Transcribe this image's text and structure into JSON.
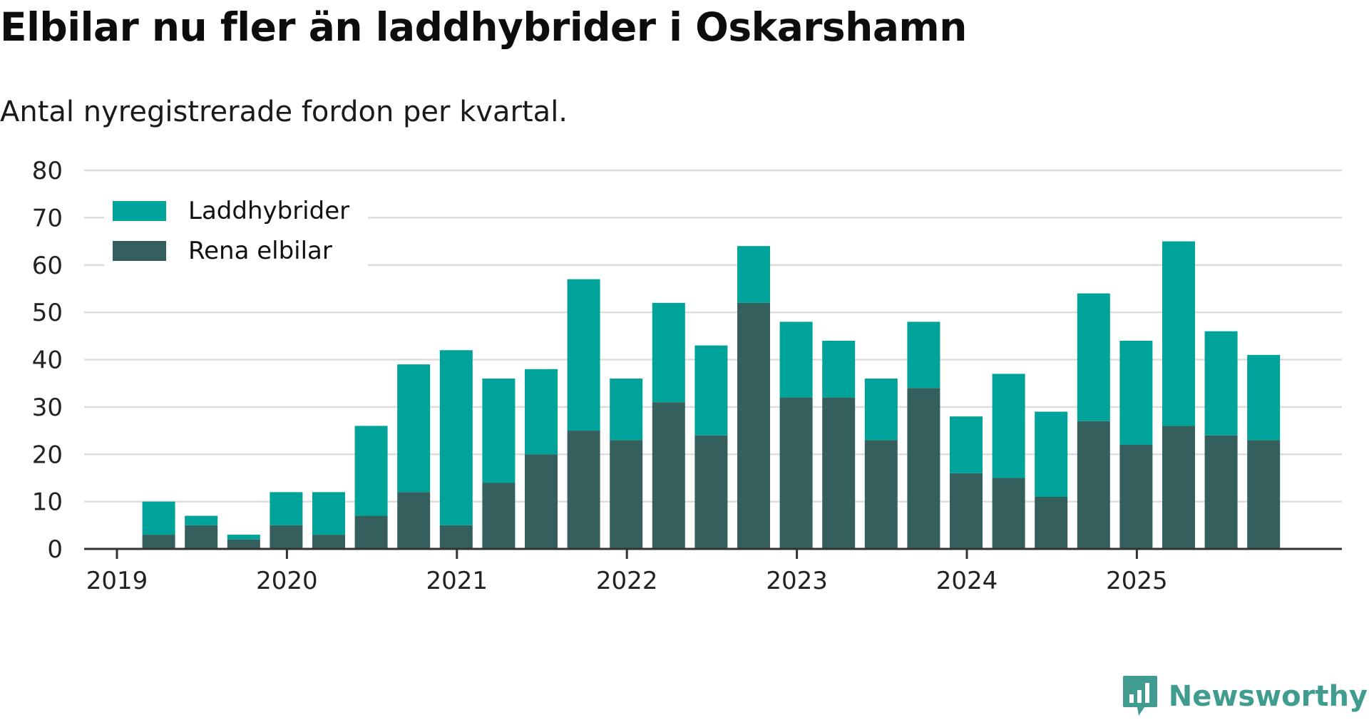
{
  "header": {
    "title": "Elbilar nu fler än laddhybrider i Oskarshamn",
    "subtitle": "Antal nyregistrerade fordon per kvartal."
  },
  "brand": {
    "name": "Newsworthy",
    "color": "#3f9c8f"
  },
  "colors": {
    "laddhybrider": "#00a39a",
    "elbilar": "#345f5c",
    "grid": "#dddddd",
    "axis": "#333333"
  },
  "chart_data": {
    "type": "bar",
    "stacked": true,
    "title": "Elbilar nu fler än laddhybrider i Oskarshamn",
    "subtitle": "Antal nyregistrerade fordon per kvartal.",
    "xlabel": "",
    "ylabel": "",
    "ylim": [
      0,
      80
    ],
    "yticks": [
      0,
      10,
      20,
      30,
      40,
      50,
      60,
      70,
      80
    ],
    "grid": true,
    "legend_position": "top-left",
    "x_tick_labels": [
      "2019",
      "2020",
      "2021",
      "2022",
      "2023",
      "2024",
      "2025"
    ],
    "categories": [
      "2019 Q1",
      "2019 Q2",
      "2019 Q3",
      "2019 Q4",
      "2020 Q1",
      "2020 Q2",
      "2020 Q3",
      "2020 Q4",
      "2021 Q1",
      "2021 Q2",
      "2021 Q3",
      "2021 Q4",
      "2022 Q1",
      "2022 Q2",
      "2022 Q3",
      "2022 Q4",
      "2023 Q1",
      "2023 Q2",
      "2023 Q3",
      "2023 Q4",
      "2024 Q1",
      "2024 Q2",
      "2024 Q3",
      "2024 Q4",
      "2025 Q1",
      "2025 Q2",
      "2025 Q3",
      "2025 Q4"
    ],
    "series": [
      {
        "name": "Rena elbilar",
        "values": [
          0,
          3,
          5,
          2,
          5,
          3,
          7,
          12,
          5,
          14,
          20,
          25,
          23,
          31,
          24,
          52,
          32,
          32,
          23,
          34,
          16,
          15,
          11,
          27,
          22,
          26,
          24,
          23
        ]
      },
      {
        "name": "Laddhybrider",
        "values": [
          0,
          7,
          2,
          1,
          7,
          9,
          19,
          27,
          37,
          22,
          18,
          32,
          13,
          21,
          19,
          12,
          16,
          12,
          13,
          14,
          12,
          22,
          18,
          27,
          22,
          39,
          22,
          18
        ]
      }
    ]
  }
}
